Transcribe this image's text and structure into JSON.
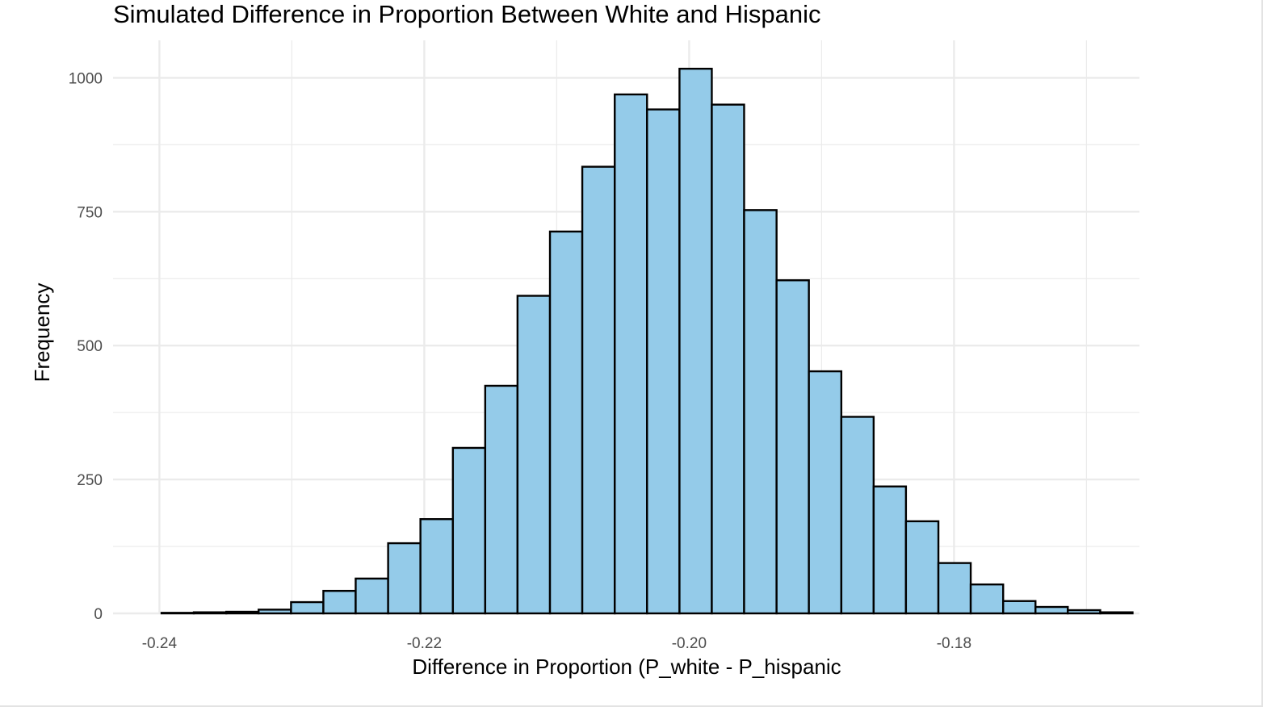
{
  "chart_data": {
    "type": "bar",
    "title": "Simulated Difference in Proportion Between White and Hispanic",
    "xlabel": "Difference in Proportion (P_white - P_hispanic",
    "ylabel": "Frequency",
    "x_ticks": [
      -0.24,
      -0.22,
      -0.2,
      -0.18
    ],
    "x_tick_labels": [
      "-0.24",
      "-0.22",
      "-0.20",
      "-0.18"
    ],
    "y_ticks": [
      0,
      250,
      500,
      750,
      1000
    ],
    "y_tick_labels": [
      "0",
      "250",
      "500",
      "750",
      "1000"
    ],
    "xlim": [
      -0.2435,
      -0.166
    ],
    "ylim": [
      0,
      1070
    ],
    "grid": true,
    "legend": "none",
    "colors": {
      "fill": "#94cbe9",
      "stroke": "#000000",
      "grid": "#ebebeb"
    },
    "bin_width": 0.002444,
    "bins": [
      {
        "x0": -0.23984,
        "x1": -0.2374,
        "count": 1
      },
      {
        "x0": -0.2374,
        "x1": -0.23495,
        "count": 2
      },
      {
        "x0": -0.23495,
        "x1": -0.23251,
        "count": 3
      },
      {
        "x0": -0.23251,
        "x1": -0.23006,
        "count": 7
      },
      {
        "x0": -0.23006,
        "x1": -0.22762,
        "count": 21
      },
      {
        "x0": -0.22762,
        "x1": -0.22518,
        "count": 42
      },
      {
        "x0": -0.22518,
        "x1": -0.22273,
        "count": 65
      },
      {
        "x0": -0.22273,
        "x1": -0.22029,
        "count": 131
      },
      {
        "x0": -0.22029,
        "x1": -0.21784,
        "count": 176
      },
      {
        "x0": -0.21784,
        "x1": -0.2154,
        "count": 309
      },
      {
        "x0": -0.2154,
        "x1": -0.21296,
        "count": 425
      },
      {
        "x0": -0.21296,
        "x1": -0.21051,
        "count": 593
      },
      {
        "x0": -0.21051,
        "x1": -0.20807,
        "count": 713
      },
      {
        "x0": -0.20807,
        "x1": -0.20562,
        "count": 834
      },
      {
        "x0": -0.20562,
        "x1": -0.20318,
        "count": 969
      },
      {
        "x0": -0.20318,
        "x1": -0.20073,
        "count": 941
      },
      {
        "x0": -0.20073,
        "x1": -0.19829,
        "count": 1017
      },
      {
        "x0": -0.19829,
        "x1": -0.19585,
        "count": 950
      },
      {
        "x0": -0.19585,
        "x1": -0.1934,
        "count": 753
      },
      {
        "x0": -0.1934,
        "x1": -0.19096,
        "count": 622
      },
      {
        "x0": -0.19096,
        "x1": -0.18851,
        "count": 452
      },
      {
        "x0": -0.18851,
        "x1": -0.18607,
        "count": 367
      },
      {
        "x0": -0.18607,
        "x1": -0.18363,
        "count": 237
      },
      {
        "x0": -0.18363,
        "x1": -0.18118,
        "count": 172
      },
      {
        "x0": -0.18118,
        "x1": -0.17874,
        "count": 94
      },
      {
        "x0": -0.17874,
        "x1": -0.17629,
        "count": 54
      },
      {
        "x0": -0.17629,
        "x1": -0.17385,
        "count": 23
      },
      {
        "x0": -0.17385,
        "x1": -0.17141,
        "count": 12
      },
      {
        "x0": -0.17141,
        "x1": -0.16896,
        "count": 6
      },
      {
        "x0": -0.16896,
        "x1": -0.16652,
        "count": 2
      }
    ]
  }
}
